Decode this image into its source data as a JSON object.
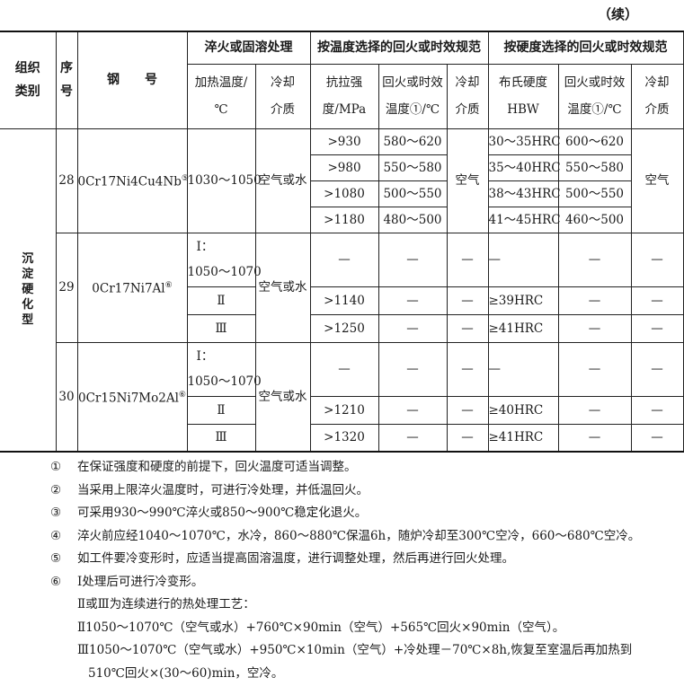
{
  "continued": "（续）",
  "header": {
    "category": "组织类别",
    "seq": "序号",
    "grade": "钢　　号",
    "quench_group": "淬火或固溶处理",
    "heat_temp": "加热温度/℃",
    "cool1": "冷却介质",
    "by_temp_group": "按温度选择的回火或时效规范",
    "tensile": "抗拉强度/MPa",
    "temper_temp1": "回火或时效温度①/℃",
    "cool2": "冷却介质",
    "by_hard_group": "按硬度选择的回火或时效规范",
    "hardness": "布氏硬度HBW",
    "temper_temp2": "回火或时效温度①/℃",
    "cool3": "冷却介质"
  },
  "category_value": "沉淀硬化型",
  "rows": [
    {
      "no": "28",
      "grade": "0Cr17Ni4Cu4Nb",
      "grade_note": "⑤",
      "heat": "1030～1050",
      "cool1": "空气或水",
      "cool2": "空气",
      "cool3": "空气",
      "sub": [
        {
          "tensile": ">930",
          "temp": "580～620",
          "hard": "30～35HRC",
          "temp2": "600～620"
        },
        {
          "tensile": ">980",
          "temp": "550～580",
          "hard": "35～40HRC",
          "temp2": "550～580"
        },
        {
          "tensile": ">1080",
          "temp": "500～550",
          "hard": "38～43HRC",
          "temp2": "500～550"
        },
        {
          "tensile": ">1180",
          "temp": "480～500",
          "hard": "41～45HRC",
          "temp2": "460～500"
        }
      ]
    },
    {
      "no": "29",
      "grade": "0Cr17Ni7Al",
      "grade_note": "⑥",
      "heat1": "Ⅰ：",
      "heat1b": "1050～1070",
      "cool1": "空气或水",
      "sub": [
        {
          "heat": "",
          "tensile": "—",
          "temp": "—",
          "cool2": "—",
          "hard": "—",
          "temp2": "—",
          "cool3": "—"
        },
        {
          "heat": "Ⅱ",
          "tensile": ">1140",
          "temp": "—",
          "cool2": "—",
          "hard": "≥39HRC",
          "temp2": "—",
          "cool3": "—"
        },
        {
          "heat": "Ⅲ",
          "tensile": ">1250",
          "temp": "—",
          "cool2": "—",
          "hard": "≥41HRC",
          "temp2": "—",
          "cool3": "—"
        }
      ]
    },
    {
      "no": "30",
      "grade": "0Cr15Ni7Mo2Al",
      "grade_note": "⑥",
      "heat1": "Ⅰ：",
      "heat1b": "1050～1070",
      "cool1": "空气或水",
      "sub": [
        {
          "heat": "",
          "tensile": "—",
          "temp": "—",
          "cool2": "—",
          "hard": "—",
          "temp2": "—",
          "cool3": "—"
        },
        {
          "heat": "Ⅱ",
          "tensile": ">1210",
          "temp": "—",
          "cool2": "—",
          "hard": "≥40HRC",
          "temp2": "—",
          "cool3": "—"
        },
        {
          "heat": "Ⅲ",
          "tensile": ">1320",
          "temp": "—",
          "cool2": "—",
          "hard": "≥41HRC",
          "temp2": "—",
          "cool3": "—"
        }
      ]
    }
  ],
  "notes": [
    {
      "num": "①",
      "text": "在保证强度和硬度的前提下，回火温度可适当调整。"
    },
    {
      "num": "②",
      "text": "当采用上限淬火温度时，可进行冷处理，并低温回火。"
    },
    {
      "num": "③",
      "text": "可采用930～990℃淬火或850～900℃稳定化退火。"
    },
    {
      "num": "④",
      "text": "淬火前应经1040～1070℃，水冷，860～880℃保温6h，随炉冷却至300℃空冷，660～680℃空冷。"
    },
    {
      "num": "⑤",
      "text": "如工件要冷变形时，应适当提高固溶温度，进行调整处理，然后再进行回火处理。"
    },
    {
      "num": "⑥",
      "text": "Ⅰ处理后可进行冷变形。"
    }
  ],
  "note6_lines": [
    "Ⅱ或Ⅲ为连续进行的热处理工艺：",
    "Ⅱ1050～1070℃（空气或水）+760℃×90min（空气）+565℃回火×90min（空气）。",
    "Ⅲ1050～1070℃（空气或水）+950℃×10min（空气）+冷处理－70℃×8h,恢复至室温后再加热到",
    "510℃回火×(30～60)min，空冷。"
  ]
}
